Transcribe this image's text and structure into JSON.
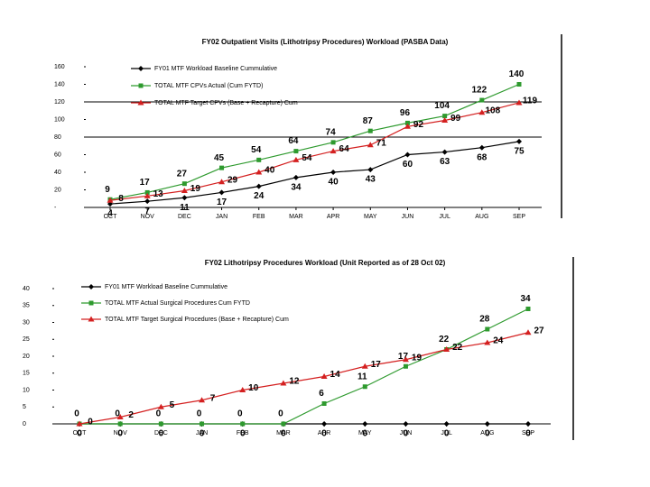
{
  "chart_data": [
    {
      "type": "line",
      "title": "FY02 Outpatient Visits (Lithotripsy Procedures) Workload (PASBA Data)",
      "categories": [
        "OCT",
        "NOV",
        "DEC",
        "JAN",
        "FEB",
        "MAR",
        "APR",
        "MAY",
        "JUN",
        "JUL",
        "AUG",
        "SEP"
      ],
      "series": [
        {
          "name": "FY01 MTF Workload Baseline Cummulative",
          "color": "#000000",
          "values": [
            4,
            7,
            11,
            17,
            24,
            34,
            40,
            43,
            60,
            63,
            68,
            75
          ]
        },
        {
          "name": "TOTAL MTF CPVs Actual (Cum FYTD)",
          "color": "#2e9a2e",
          "values": [
            9,
            17,
            27,
            45,
            54,
            64,
            74,
            87,
            96,
            104,
            122,
            140
          ]
        },
        {
          "name": "TOTAL MTF Target CPVs (Base + Recapture) Cum",
          "color": "#d42020",
          "values": [
            8,
            13,
            19,
            29,
            40,
            54,
            64,
            71,
            92,
            99,
            108,
            119
          ]
        }
      ],
      "ylim": [
        0,
        160
      ],
      "yticks": [
        {
          "value": 0,
          "label": "-"
        },
        20,
        40,
        60,
        80,
        100,
        120,
        140,
        160
      ],
      "grid": false
    },
    {
      "type": "line",
      "title": "FY02 Lithotripsy Procedures Workload (Unit Reported as of 28 Oct 02)",
      "categories": [
        "OCT",
        "NOV",
        "DEC",
        "JAN",
        "FEB",
        "MAR",
        "APR",
        "MAY",
        "JUN",
        "JUL",
        "AUG",
        "SEP"
      ],
      "series": [
        {
          "name": "FY01 MTF Workload Baseline Cummulative",
          "color": "#000000",
          "values": [
            0,
            0,
            0,
            0,
            0,
            0,
            0,
            0,
            0,
            0,
            0,
            0
          ]
        },
        {
          "name": "TOTAL MTF Actual Surgical Procedures Cum FYTD",
          "color": "#2e9a2e",
          "values": [
            0,
            0,
            0,
            0,
            0,
            0,
            6,
            11,
            17,
            22,
            28,
            34
          ]
        },
        {
          "name": "TOTAL MTF Target Surgical Procedures (Base + Recapture) Cum",
          "color": "#d42020",
          "values": [
            0,
            2,
            5,
            7,
            10,
            12,
            14,
            17,
            19,
            22,
            24,
            27
          ]
        }
      ],
      "ylim": [
        0,
        40
      ],
      "yticks": [
        0,
        5,
        10,
        15,
        20,
        25,
        30,
        35,
        40
      ],
      "grid": false
    }
  ]
}
